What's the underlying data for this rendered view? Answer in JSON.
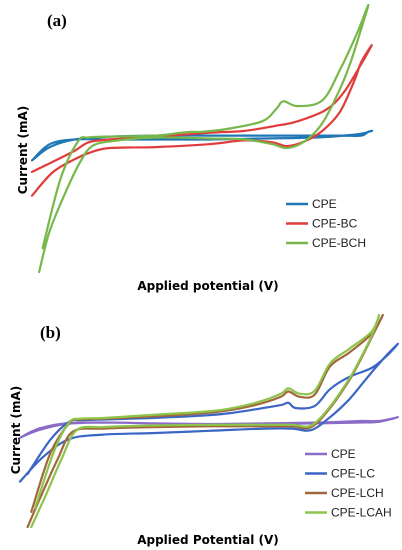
{
  "chart_data": [
    {
      "type": "line",
      "panel_label": "(a)",
      "xlabel": "Applied potential (V)",
      "ylabel": "Current (mA)",
      "xlim": [
        0,
        100
      ],
      "ylim": [
        -140,
        140
      ],
      "ticks_shown": false,
      "grid": false,
      "legend_position": "right",
      "series": [
        {
          "name": "CPE",
          "color": "#1f77b4",
          "closed": true,
          "points": [
            [
              0,
              -23
            ],
            [
              5,
              -9
            ],
            [
              12,
              -1
            ],
            [
              22,
              2
            ],
            [
              35,
              3
            ],
            [
              50,
              3
            ],
            [
              65,
              3
            ],
            [
              80,
              3
            ],
            [
              88,
              3
            ],
            [
              93,
              3
            ],
            [
              95,
              7
            ],
            [
              96,
              8
            ],
            [
              93,
              5
            ],
            [
              88,
              3
            ],
            [
              80,
              1
            ],
            [
              65,
              0
            ],
            [
              50,
              -1
            ],
            [
              35,
              -1
            ],
            [
              22,
              -1
            ],
            [
              12,
              -1
            ],
            [
              5,
              -6
            ],
            [
              0,
              -23
            ]
          ]
        },
        {
          "name": "CPE-BC",
          "color": "#e03c3c",
          "closed": true,
          "points": [
            [
              0,
              -60
            ],
            [
              6,
              -35
            ],
            [
              13,
              -20
            ],
            [
              17,
              -14
            ],
            [
              22,
              -10
            ],
            [
              35,
              -9
            ],
            [
              50,
              -6
            ],
            [
              60,
              -2
            ],
            [
              68,
              -4
            ],
            [
              72,
              -8
            ],
            [
              77,
              -3
            ],
            [
              82,
              8
            ],
            [
              87,
              28
            ],
            [
              91,
              60
            ],
            [
              93,
              80
            ],
            [
              96,
              98
            ],
            [
              93,
              78
            ],
            [
              88,
              48
            ],
            [
              83,
              30
            ],
            [
              75,
              18
            ],
            [
              70,
              14
            ],
            [
              60,
              8
            ],
            [
              50,
              6
            ],
            [
              35,
              2
            ],
            [
              22,
              -1
            ],
            [
              16,
              -4
            ],
            [
              12,
              -13
            ],
            [
              5,
              -26
            ],
            [
              0,
              -35
            ]
          ]
        },
        {
          "name": "CPE-BCH",
          "color": "#77b84a",
          "closed": true,
          "points": [
            [
              2,
              -140
            ],
            [
              5,
              -97
            ],
            [
              10,
              -52
            ],
            [
              14,
              -22
            ],
            [
              17,
              -8
            ],
            [
              22,
              -3
            ],
            [
              35,
              1
            ],
            [
              50,
              0
            ],
            [
              60,
              -1
            ],
            [
              68,
              -6
            ],
            [
              72,
              -10
            ],
            [
              77,
              -3
            ],
            [
              82,
              16
            ],
            [
              87,
              52
            ],
            [
              90,
              80
            ],
            [
              93,
              115
            ],
            [
              95,
              140
            ],
            [
              92,
              112
            ],
            [
              87,
              72
            ],
            [
              82,
              40
            ],
            [
              75,
              34
            ],
            [
              71,
              39
            ],
            [
              69,
              31
            ],
            [
              65,
              18
            ],
            [
              55,
              10
            ],
            [
              48,
              7
            ],
            [
              45,
              7
            ],
            [
              42,
              6
            ],
            [
              35,
              3
            ],
            [
              22,
              2
            ],
            [
              16,
              1
            ],
            [
              13,
              -3
            ],
            [
              8,
              -43
            ],
            [
              3,
              -115
            ]
          ]
        }
      ]
    },
    {
      "type": "line",
      "panel_label": "(b)",
      "xlabel": "Applied Potential (V)",
      "ylabel": "Current (mA)",
      "xlim": [
        0,
        100
      ],
      "ylim": [
        -140,
        140
      ],
      "ticks_shown": false,
      "grid": false,
      "legend_position": "right",
      "series": [
        {
          "name": "CPE",
          "color": "#8b6bc8",
          "closed": true,
          "points": [
            [
              0,
              -22
            ],
            [
              5,
              -12
            ],
            [
              12,
              -4
            ],
            [
              22,
              -2
            ],
            [
              35,
              -3
            ],
            [
              50,
              -4
            ],
            [
              65,
              -4
            ],
            [
              80,
              -3
            ],
            [
              90,
              -2
            ],
            [
              95,
              -1
            ],
            [
              100,
              5
            ],
            [
              95,
              0
            ],
            [
              90,
              0
            ],
            [
              80,
              -2
            ],
            [
              65,
              -3
            ],
            [
              50,
              -4
            ],
            [
              35,
              -3
            ],
            [
              22,
              -2
            ],
            [
              12,
              -3
            ],
            [
              5,
              -10
            ],
            [
              0,
              -22
            ]
          ]
        },
        {
          "name": "CPE-LC",
          "color": "#3a66c4",
          "closed": true,
          "points": [
            [
              0,
              -80
            ],
            [
              6,
              -48
            ],
            [
              13,
              -24
            ],
            [
              22,
              -18
            ],
            [
              35,
              -16
            ],
            [
              50,
              -13
            ],
            [
              65,
              -10
            ],
            [
              72,
              -10
            ],
            [
              77,
              -12
            ],
            [
              82,
              5
            ],
            [
              87,
              28
            ],
            [
              91,
              52
            ],
            [
              94,
              70
            ],
            [
              97,
              87
            ],
            [
              100,
              102
            ],
            [
              97,
              86
            ],
            [
              93,
              70
            ],
            [
              87,
              58
            ],
            [
              82,
              42
            ],
            [
              78,
              20
            ],
            [
              73,
              17
            ],
            [
              71,
              24
            ],
            [
              69,
              21
            ],
            [
              63,
              16
            ],
            [
              55,
              10
            ],
            [
              48,
              7
            ],
            [
              35,
              4
            ],
            [
              22,
              2
            ],
            [
              16,
              1
            ],
            [
              13,
              -1
            ],
            [
              8,
              -25
            ],
            [
              2,
              -70
            ]
          ]
        },
        {
          "name": "CPE-LCH",
          "color": "#a0683c",
          "closed": true,
          "points": [
            [
              2,
              -140
            ],
            [
              6,
              -94
            ],
            [
              10,
              -50
            ],
            [
              14,
              -14
            ],
            [
              22,
              -10
            ],
            [
              35,
              -8
            ],
            [
              50,
              -7
            ],
            [
              65,
              -7
            ],
            [
              72,
              -7
            ],
            [
              77,
              -8
            ],
            [
              82,
              17
            ],
            [
              87,
              53
            ],
            [
              90,
              80
            ],
            [
              93,
              110
            ],
            [
              96,
              140
            ],
            [
              93,
              115
            ],
            [
              87,
              90
            ],
            [
              82,
              72
            ],
            [
              78,
              35
            ],
            [
              74,
              32
            ],
            [
              71,
              39
            ],
            [
              69,
              32
            ],
            [
              63,
              22
            ],
            [
              55,
              14
            ],
            [
              48,
              10
            ],
            [
              35,
              6
            ],
            [
              22,
              3
            ],
            [
              16,
              2
            ],
            [
              13,
              -3
            ],
            [
              8,
              -43
            ],
            [
              3,
              -120
            ]
          ]
        },
        {
          "name": "CPE-LCAH",
          "color": "#8dc44a",
          "closed": true,
          "points": [
            [
              3,
              -140
            ],
            [
              7,
              -96
            ],
            [
              11,
              -50
            ],
            [
              15,
              -12
            ],
            [
              22,
              -8
            ],
            [
              35,
              -6
            ],
            [
              50,
              -5
            ],
            [
              65,
              -5
            ],
            [
              72,
              -5
            ],
            [
              77,
              -6
            ],
            [
              82,
              19
            ],
            [
              87,
              55
            ],
            [
              90,
              82
            ],
            [
              93,
              112
            ],
            [
              95,
              140
            ],
            [
              93,
              118
            ],
            [
              87,
              95
            ],
            [
              82,
              76
            ],
            [
              78,
              40
            ],
            [
              74,
              36
            ],
            [
              71,
              43
            ],
            [
              69,
              36
            ],
            [
              63,
              25
            ],
            [
              55,
              16
            ],
            [
              48,
              12
            ],
            [
              35,
              8
            ],
            [
              22,
              4
            ],
            [
              16,
              3
            ],
            [
              13,
              -2
            ],
            [
              9,
              -40
            ],
            [
              4,
              -115
            ]
          ]
        }
      ]
    }
  ]
}
